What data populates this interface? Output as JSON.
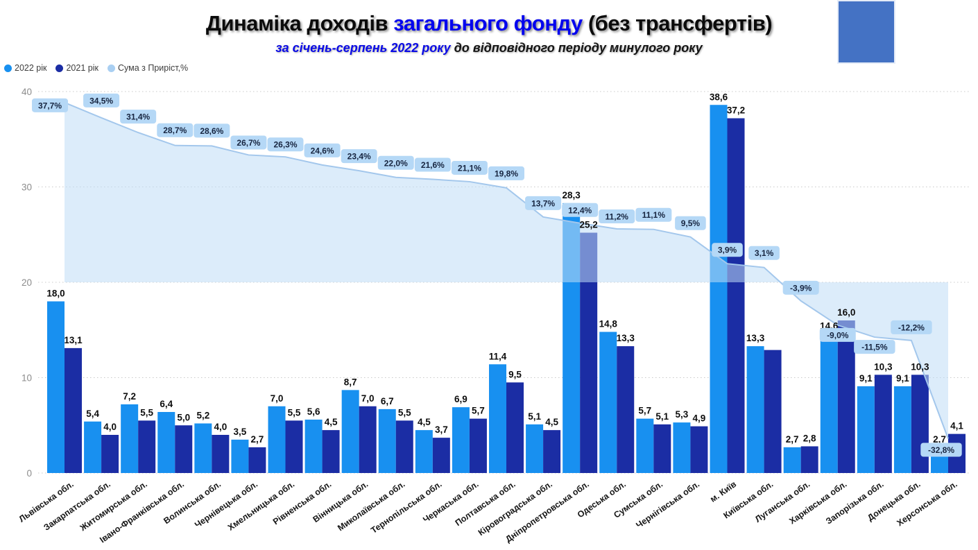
{
  "title": {
    "part1": "Динаміка доходів ",
    "part2": "загального фонду",
    "part3": " (без трансфертів)"
  },
  "subtitle": {
    "part1": "за січень-серпень 2022 року ",
    "part2": "до відповідного періоду минулого року"
  },
  "legend": [
    {
      "label": "2022 рік",
      "color": "#1890F0"
    },
    {
      "label": "2021 рік",
      "color": "#1B2DA4"
    },
    {
      "label": "Сума з Приріст,%",
      "color": "#A9CFF2"
    }
  ],
  "decor_color": "#4472C4",
  "chart_data": {
    "type": "bar",
    "subtype": "clustered-columns-with-percent-line-area",
    "title": "Динаміка доходів загального фонду (без трансфертів)",
    "subtitle": "за січень-серпень 2022 року до відповідного періоду минулого року",
    "legend_position": "top-left",
    "y_axis": {
      "ticks": [
        0,
        10,
        20,
        30,
        40
      ],
      "range": [
        0,
        40
      ],
      "gridlines": "dotted"
    },
    "categories": [
      "Львівська обл.",
      "Закарпатська обл.",
      "Житомирська обл.",
      "Івано-Франківська обл.",
      "Волинська обл.",
      "Чернівецька обл.",
      "Хмельницька обл.",
      "Рівненська обл.",
      "Вінницька обл.",
      "Миколаївська обл.",
      "Тернопільська обл.",
      "Черкаська обл.",
      "Полтавська обл.",
      "Кіровоградська обл.",
      "Дніпропетровська обл.",
      "Одеська обл.",
      "Сумська обл.",
      "Чернігівська обл.",
      "м. Київ",
      "Київська обл.",
      "Луганська обл.",
      "Харківська обл.",
      "Запорізька обл.",
      "Донецька обл.",
      "Херсонська обл."
    ],
    "series": [
      {
        "name": "2022 рік",
        "color": "#1890F0",
        "values": [
          18.0,
          5.4,
          7.2,
          6.4,
          5.2,
          3.5,
          7.0,
          5.6,
          8.7,
          6.7,
          4.5,
          6.9,
          11.4,
          5.1,
          28.3,
          14.8,
          5.7,
          5.3,
          38.6,
          13.3,
          2.7,
          14.6,
          9.1,
          9.1,
          2.7
        ],
        "labels": [
          "18,0",
          "5,4",
          "7,2",
          "6,4",
          "5,2",
          "3,5",
          "7,0",
          "5,6",
          "8,7",
          "6,7",
          "4,5",
          "6,9",
          "11,4",
          "5,1",
          "28,3",
          "14,8",
          "5,7",
          "5,3",
          "38,6",
          "13,3",
          "2,7",
          "14,6",
          "9,1",
          "9,1",
          "2,7"
        ]
      },
      {
        "name": "2021 рік",
        "color": "#1B2DA4",
        "values": [
          13.1,
          4.0,
          5.5,
          5.0,
          4.0,
          2.7,
          5.5,
          4.5,
          7.0,
          5.5,
          3.7,
          5.7,
          9.5,
          4.5,
          25.2,
          13.3,
          5.1,
          4.9,
          37.2,
          12.9,
          2.8,
          16.0,
          10.3,
          10.3,
          4.1
        ],
        "labels": [
          "13,1",
          "4,0",
          "5,5",
          "5,0",
          "4,0",
          "2,7",
          "5,5",
          "4,5",
          "7,0",
          "5,5",
          "3,7",
          "5,7",
          "9,5",
          "4,5",
          "25,2",
          "13,3",
          "5,1",
          "4,9",
          "37,2",
          "",
          "2,8",
          "16,0",
          "10,3",
          "10,3",
          "4,1"
        ]
      }
    ],
    "line": {
      "name": "Сума з Приріст,%",
      "stroke": "#A3C7EC",
      "fill": "#BFDCF6",
      "fill_opacity": 0.55,
      "label_bg": "#B5D8F6",
      "label_color": "#172540",
      "axis": "secondary",
      "secondary_axis_range": [
        -40,
        40
      ],
      "secondary_axis_visible": false,
      "values": [
        37.7,
        34.5,
        31.4,
        28.7,
        28.6,
        26.7,
        26.3,
        24.6,
        23.4,
        22.0,
        21.6,
        21.1,
        19.8,
        13.7,
        12.4,
        11.2,
        11.1,
        9.5,
        3.9,
        3.1,
        -3.9,
        -9.0,
        -11.5,
        -12.2,
        -32.8
      ],
      "labels": [
        "37,7%",
        "34,5%",
        "31,4%",
        "28,7%",
        "28,6%",
        "26,7%",
        "26,3%",
        "24,6%",
        "23,4%",
        "22,0%",
        "21,6%",
        "21,1%",
        "19,8%",
        "13,7%",
        "12,4%",
        "11,2%",
        "11,1%",
        "9,5%",
        "3,9%",
        "3,1%",
        "-3,9%",
        "-9,0%",
        "-11,5%",
        "-12,2%",
        "-32,8%"
      ]
    }
  }
}
